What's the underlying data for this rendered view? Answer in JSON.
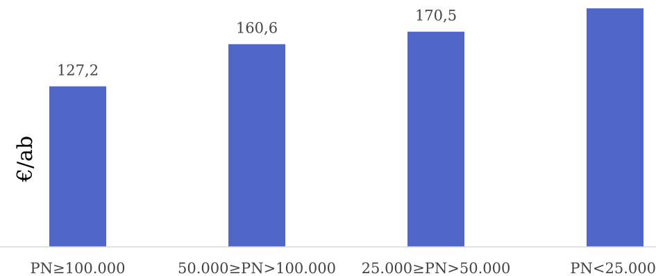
{
  "chart_data": {
    "type": "bar",
    "categories": [
      "PN≥100.000",
      "50.000≥PN>100.000",
      "25.000≥PN>50.000",
      "PN<25.000"
    ],
    "values": [
      127.2,
      160.6,
      170.5,
      189.0
    ],
    "data_labels": [
      "127,2",
      "160,6",
      "170,5",
      ""
    ],
    "ylabel": "€/ab",
    "xlabel": "",
    "title": "",
    "ylim": [
      0,
      200
    ],
    "bar_color": "#5067c8",
    "axis_color": "#d9d9d9",
    "grid": false,
    "legend": "none"
  }
}
